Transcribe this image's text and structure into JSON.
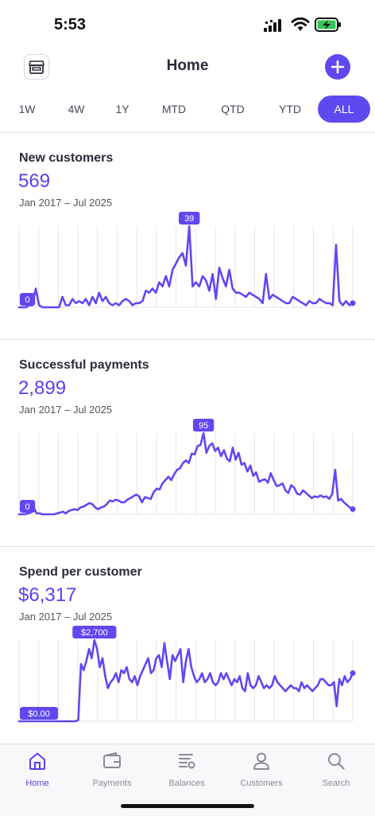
{
  "status_bar": {
    "time": "5:53"
  },
  "header": {
    "title": "Home",
    "shop_icon": "storefront-icon",
    "add_icon": "plus-icon"
  },
  "date_ranges": {
    "options": [
      "1W",
      "4W",
      "1Y",
      "MTD",
      "QTD",
      "YTD",
      "ALL"
    ],
    "selected": "ALL"
  },
  "colors": {
    "accent": "#6048f0",
    "value_text": "#5a3ff0",
    "gridline": "#e6e6ea",
    "tab_inactive": "#8a8a96"
  },
  "cards": [
    {
      "title": "New customers",
      "value": "569",
      "period": "Jan 2017 – Jul 2025",
      "chart_data": {
        "type": "line",
        "values": [
          0,
          0,
          0,
          1,
          1,
          9,
          1,
          0,
          0,
          0,
          0,
          0,
          0,
          5,
          1,
          1,
          4,
          2,
          3,
          2,
          4,
          1,
          5,
          2,
          7,
          3,
          5,
          2,
          1,
          2,
          1,
          3,
          4,
          3,
          1,
          2,
          2,
          3,
          8,
          7,
          9,
          7,
          12,
          10,
          15,
          10,
          18,
          21,
          24,
          26,
          20,
          39,
          10,
          12,
          10,
          15,
          13,
          8,
          16,
          4,
          19,
          14,
          10,
          18,
          9,
          7,
          7,
          6,
          5,
          7,
          6,
          5,
          4,
          2,
          16,
          4,
          6,
          5,
          4,
          3,
          2,
          2,
          5,
          4,
          3,
          2,
          1,
          3,
          2,
          2,
          4,
          3,
          2,
          2,
          1,
          30,
          3,
          1,
          3,
          1,
          2
        ],
        "max_label": "39",
        "min_label": "0",
        "ylim": [
          0,
          39
        ]
      }
    },
    {
      "title": "Successful payments",
      "value": "2,899",
      "period": "Jan 2017 – Jul 2025",
      "chart_data": {
        "type": "line",
        "values": [
          0,
          0,
          0,
          1,
          2,
          8,
          1,
          1,
          0,
          0,
          0,
          0,
          0,
          1,
          2,
          3,
          1,
          4,
          5,
          6,
          5,
          8,
          9,
          11,
          13,
          12,
          8,
          6,
          8,
          9,
          12,
          16,
          15,
          17,
          16,
          14,
          14,
          17,
          19,
          21,
          23,
          21,
          14,
          20,
          19,
          18,
          26,
          30,
          29,
          36,
          40,
          44,
          40,
          47,
          52,
          54,
          60,
          63,
          60,
          71,
          70,
          80,
          81,
          95,
          72,
          80,
          83,
          74,
          78,
          68,
          75,
          65,
          62,
          78,
          64,
          72,
          58,
          60,
          50,
          57,
          45,
          49,
          38,
          40,
          41,
          37,
          48,
          40,
          33,
          34,
          36,
          28,
          25,
          34,
          31,
          24,
          23,
          28,
          25,
          22,
          19,
          21,
          20,
          22,
          20,
          21,
          18,
          24,
          52,
          16,
          18,
          14,
          11,
          8,
          6
        ],
        "max_label": "95",
        "min_label": "0",
        "ylim": [
          0,
          95
        ]
      }
    },
    {
      "title": "Spend per customer",
      "value": "$6,317",
      "period": "Jan 2017 – Jul 2025",
      "chart_data": {
        "type": "line",
        "values": [
          0,
          0,
          0,
          0,
          0,
          0,
          0,
          0,
          0,
          0,
          0,
          0,
          0,
          0,
          0,
          0,
          0,
          0,
          0,
          0,
          0,
          0,
          40,
          1900,
          1700,
          2000,
          2400,
          2100,
          2700,
          2400,
          1800,
          2100,
          1500,
          1100,
          1300,
          1400,
          1600,
          1300,
          1700,
          1600,
          1800,
          1400,
          1300,
          1500,
          1200,
          1500,
          1700,
          1900,
          2100,
          1600,
          1700,
          2100,
          2200,
          1800,
          2600,
          2000,
          1400,
          2200,
          2000,
          2200,
          2400,
          1300,
          2000,
          2400,
          1800,
          1500,
          1300,
          1400,
          1600,
          1300,
          1400,
          1600,
          1300,
          1200,
          1300,
          1600,
          1400,
          1600,
          1400,
          1200,
          1400,
          1300,
          1500,
          1100,
          1000,
          1600,
          1200,
          1100,
          1200,
          1500,
          1300,
          1100,
          1200,
          1100,
          1200,
          1500,
          1300,
          1200,
          1100,
          1000,
          1100,
          1200,
          1100,
          1100,
          1000,
          1300,
          1100,
          1200,
          1100,
          1000,
          1100,
          1200,
          1400,
          1400,
          1300,
          1200,
          1200,
          1300,
          500,
          1400,
          1200,
          1500,
          1300,
          1400,
          1600
        ],
        "max_label": "$2,700",
        "min_label": "$0.00",
        "ylim": [
          0,
          2700
        ]
      }
    }
  ],
  "tab_bar": {
    "tabs": [
      {
        "label": "Home",
        "icon": "home-icon",
        "active": true
      },
      {
        "label": "Payments",
        "icon": "wallet-icon",
        "active": false
      },
      {
        "label": "Balances",
        "icon": "balances-icon",
        "active": false
      },
      {
        "label": "Customers",
        "icon": "customer-icon",
        "active": false
      },
      {
        "label": "Search",
        "icon": "search-icon",
        "active": false
      }
    ]
  }
}
